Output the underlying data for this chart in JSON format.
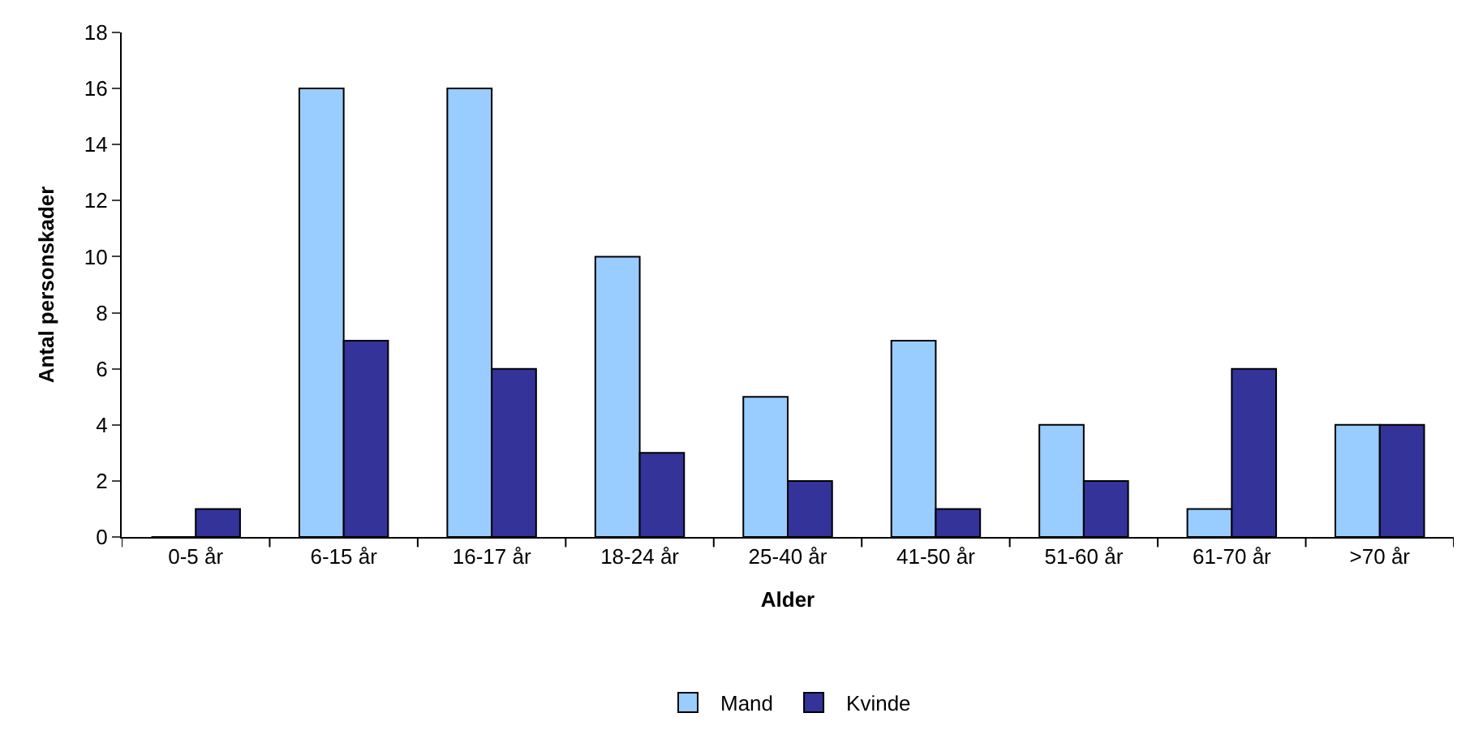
{
  "chart_data": {
    "type": "bar",
    "xlabel": "Alder",
    "ylabel": "Antal personskader",
    "categories": [
      "0-5 år",
      "6-15 år",
      "16-17 år",
      "18-24 år",
      "25-40 år",
      "41-50 år",
      "51-60 år",
      "61-70 år",
      ">70 år"
    ],
    "series": [
      {
        "name": "Mand",
        "color": "#99ccff",
        "values": [
          0,
          16,
          16,
          10,
          5,
          7,
          4,
          1,
          4
        ]
      },
      {
        "name": "Kvinde",
        "color": "#333399",
        "values": [
          1,
          7,
          6,
          3,
          2,
          1,
          2,
          6,
          4
        ]
      }
    ],
    "ylim": [
      0,
      18
    ],
    "yticks": [
      0,
      2,
      4,
      6,
      8,
      10,
      12,
      14,
      16,
      18
    ],
    "legend": "bottom"
  }
}
